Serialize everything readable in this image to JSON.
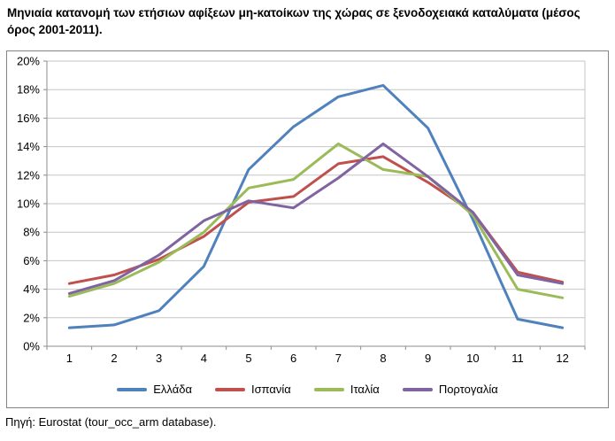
{
  "title": "Μηνιαία κατανομή των ετήσιων αφίξεων μη-κατοίκων της χώρας σε ξενοδοχειακά καταλύματα (μέσος όρος 2001-2011).",
  "source": "Πηγή: Eurostat (tour_occ_arm database).",
  "colors": {
    "gridline": "#c6c6c6",
    "axis": "#8c8c8c",
    "frame_border": "#848484",
    "text": "#000000"
  },
  "chart_data": {
    "type": "line",
    "x": [
      "1",
      "2",
      "3",
      "4",
      "5",
      "6",
      "7",
      "8",
      "9",
      "10",
      "11",
      "12"
    ],
    "series": [
      {
        "key": "greece",
        "name": "Ελλάδα",
        "color": "#4F81BD",
        "values": [
          1.3,
          1.5,
          2.5,
          5.6,
          12.4,
          15.4,
          17.5,
          18.3,
          15.3,
          8.9,
          1.9,
          1.3
        ]
      },
      {
        "key": "spain",
        "name": "Ισπανία",
        "color": "#C0504D",
        "values": [
          4.4,
          5.0,
          6.1,
          7.7,
          10.1,
          10.5,
          12.8,
          13.3,
          11.5,
          9.4,
          5.2,
          4.5
        ]
      },
      {
        "key": "italy",
        "name": "Ιταλία",
        "color": "#9BBB59",
        "values": [
          3.5,
          4.4,
          5.9,
          8.0,
          11.1,
          11.7,
          14.2,
          12.4,
          11.9,
          9.2,
          4.0,
          3.4
        ]
      },
      {
        "key": "portugal",
        "name": "Πορτογαλία",
        "color": "#8064A2",
        "values": [
          3.7,
          4.6,
          6.4,
          8.8,
          10.2,
          9.7,
          11.8,
          14.2,
          11.9,
          9.4,
          5.0,
          4.4
        ]
      }
    ],
    "title": "",
    "xlabel": "",
    "ylabel": "",
    "ylim": [
      0,
      20
    ],
    "ytick_step": 2,
    "ytick_labels": [
      "0%",
      "2%",
      "4%",
      "6%",
      "8%",
      "10%",
      "12%",
      "14%",
      "16%",
      "18%",
      "20%"
    ],
    "grid": "horizontal",
    "legend_position": "bottom"
  }
}
